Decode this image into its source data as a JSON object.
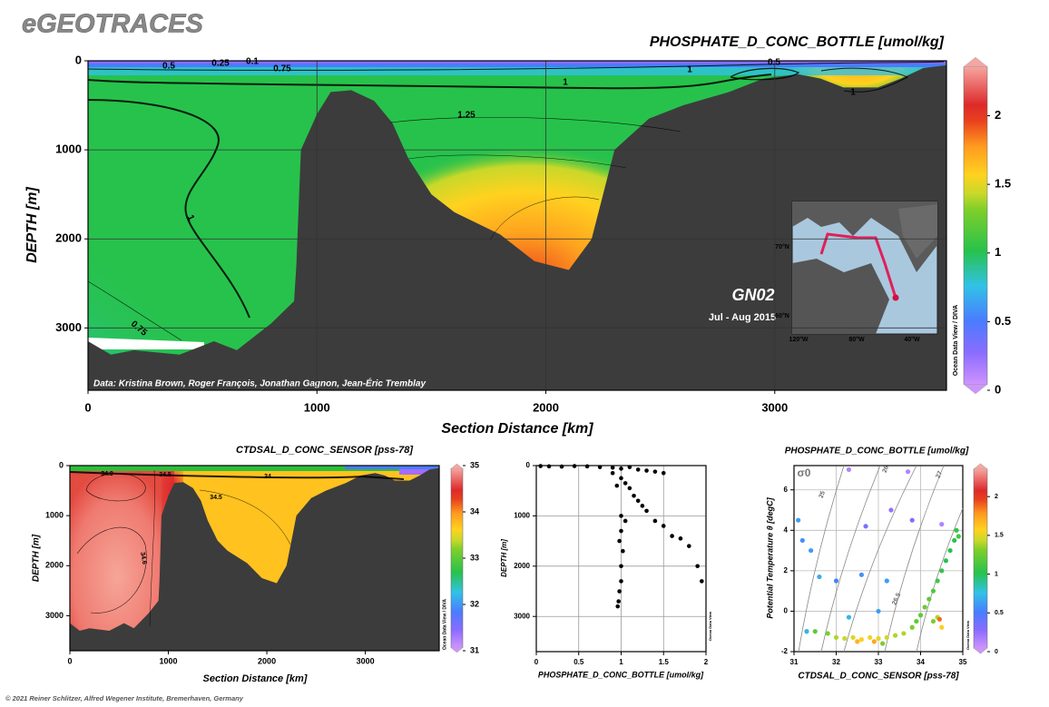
{
  "header": {
    "title": "eGEOTRACES"
  },
  "footer": {
    "credit": "© 2021 Reiner Schlitzer, Alfred Wegener Institute, Bremerhaven, Germany"
  },
  "chart_data": [
    {
      "type": "section",
      "title": "PHOSPHATE_D_CONC_BOTTLE [umol/kg]",
      "xlabel": "Section Distance [km]",
      "ylabel": "DEPTH [m]",
      "xlim": [
        0,
        3750
      ],
      "xticks": [
        0,
        1000,
        2000,
        3000
      ],
      "ylim": [
        3700,
        0
      ],
      "yticks": [
        0,
        1000,
        2000,
        3000
      ],
      "grid": true,
      "clim": [
        0,
        2.4
      ],
      "cticks": [
        0,
        0.5,
        1,
        1.5,
        2
      ],
      "colorbar_label": "Ocean Data View / DIVA",
      "bottom": {
        "x": [
          0,
          100,
          200,
          400,
          550,
          650,
          800,
          900,
          910,
          930,
          1000,
          1060,
          1150,
          1250,
          1330,
          1400,
          1500,
          1600,
          1800,
          1950,
          2100,
          2200,
          2300,
          2450,
          2600,
          2800,
          2950,
          3100,
          3200,
          3300,
          3450,
          3550,
          3650,
          3750
        ],
        "depth": [
          3150,
          3300,
          3250,
          3300,
          3150,
          3250,
          2950,
          2700,
          2300,
          1000,
          600,
          350,
          330,
          450,
          700,
          1100,
          1500,
          1700,
          1950,
          2250,
          2350,
          2000,
          1000,
          650,
          500,
          350,
          200,
          150,
          200,
          300,
          300,
          200,
          80,
          50
        ]
      },
      "contour_labels": [
        0.5,
        0.25,
        0.1,
        0.75,
        1,
        1.25,
        1,
        0.75,
        1,
        0.5,
        1
      ],
      "annotations": [
        "Data: Kristina Brown, Roger François, Jonathan Gagnon, Jean-Éric Tremblay",
        "GN02",
        "Jul - Aug 2015"
      ],
      "map_labels": [
        "70°N",
        "60°N",
        "120°W",
        "80°W",
        "40°W"
      ]
    },
    {
      "type": "section",
      "title": "CTDSAL_D_CONC_SENSOR [pss-78]",
      "xlabel": "Section Distance [km]",
      "ylabel": "DEPTH [m]",
      "xlim": [
        0,
        3750
      ],
      "xticks": [
        0,
        1000,
        2000,
        3000
      ],
      "ylim": [
        3700,
        0
      ],
      "yticks": [
        0,
        1000,
        2000,
        3000
      ],
      "grid": false,
      "clim": [
        31,
        35
      ],
      "cticks": [
        31,
        32,
        33,
        34,
        35
      ],
      "colorbar_label": "Ocean Data View / DIVA",
      "contour_labels": [
        34.9,
        34.5,
        34,
        34.5,
        34.6
      ]
    },
    {
      "type": "scatter",
      "xlabel": "PHOSPHATE_D_CONC_BOTTLE [umol/kg]",
      "ylabel": "DEPTH [m]",
      "xlim": [
        0,
        2
      ],
      "xticks": [
        0,
        0.5,
        1,
        1.5,
        2
      ],
      "ylim": [
        3700,
        0
      ],
      "yticks": [
        0,
        1000,
        2000,
        3000
      ],
      "grid": true,
      "color": "#000000",
      "side_label": "Ocean Data View",
      "x": [
        0.05,
        0.15,
        0.3,
        0.45,
        0.6,
        0.75,
        0.9,
        1.0,
        1.1,
        1.2,
        1.3,
        1.4,
        1.5,
        0.9,
        1.0,
        1.05,
        0.95,
        1.1,
        1.15,
        1.2,
        1.25,
        1.3,
        1.0,
        1.05,
        1.4,
        1.5,
        1.6,
        1.7,
        1.8,
        1.9,
        1.95,
        1.0,
        0.98,
        1.02,
        1.0,
        1.0,
        0.98,
        0.97,
        0.96
      ],
      "y": [
        10,
        15,
        20,
        10,
        15,
        30,
        40,
        60,
        30,
        80,
        100,
        120,
        150,
        150,
        250,
        350,
        400,
        450,
        600,
        700,
        800,
        900,
        1000,
        1100,
        1100,
        1200,
        1400,
        1450,
        1600,
        2000,
        2300,
        1300,
        1500,
        1700,
        2000,
        2300,
        2500,
        2700,
        2800
      ]
    },
    {
      "type": "scatter",
      "title": "PHOSPHATE_D_CONC_BOTTLE [umol/kg]",
      "xlabel": "CTDSAL_D_CONC_SENSOR [pss-78]",
      "ylabel": "Potential Temperature θ [degC]",
      "xlim": [
        31,
        35
      ],
      "xticks": [
        31,
        32,
        33,
        34,
        35
      ],
      "ylim": [
        -2,
        7.2
      ],
      "yticks": [
        -2,
        0,
        2,
        4,
        6
      ],
      "grid": true,
      "clim": [
        0,
        2.4
      ],
      "cticks": [
        0,
        0.5,
        1,
        1.5,
        2
      ],
      "colorbar_label": "Ocean Data View",
      "density_label": "σ0",
      "contour_labels": [
        25,
        26,
        26.5,
        27
      ],
      "x": [
        32.0,
        32.2,
        32.4,
        32.6,
        32.8,
        33.0,
        33.2,
        33.4,
        31.8,
        31.5,
        31.3,
        32.5,
        32.9,
        33.1,
        33.6,
        33.8,
        33.9,
        34.0,
        34.1,
        34.2,
        34.3,
        34.4,
        34.5,
        34.6,
        34.7,
        34.8,
        34.85,
        34.9,
        34.4,
        34.5,
        34.45,
        34.3,
        31.1,
        31.2,
        31.4,
        31.6,
        32.0,
        32.3,
        32.6,
        33.0,
        33.2,
        31.3,
        32.7,
        33.3,
        33.8,
        34.5,
        33.7,
        32.3
      ],
      "y": [
        -1.3,
        -1.35,
        -1.3,
        -1.4,
        -1.3,
        -1.35,
        -1.3,
        -1.2,
        -1.1,
        -1.0,
        -1.0,
        -1.5,
        -1.5,
        -1.6,
        -1.1,
        -0.8,
        -0.5,
        -0.2,
        0.2,
        0.6,
        1.0,
        1.5,
        2.0,
        2.5,
        3.0,
        3.5,
        4.0,
        3.7,
        -0.3,
        -0.8,
        -0.4,
        -0.5,
        4.5,
        3.5,
        3.0,
        1.7,
        1.5,
        -0.3,
        1.8,
        0.0,
        1.5,
        -1.0,
        4.2,
        5.0,
        4.5,
        4.3,
        6.9,
        7.0
      ],
      "c": [
        1.4,
        1.45,
        1.5,
        1.6,
        1.55,
        1.5,
        1.45,
        1.4,
        1.3,
        1.2,
        1.1,
        1.7,
        1.75,
        1.3,
        1.4,
        1.3,
        1.2,
        1.2,
        1.25,
        1.2,
        1.15,
        1.1,
        1.05,
        1.0,
        1.0,
        1.0,
        1.05,
        1.1,
        1.4,
        1.6,
        1.9,
        1.3,
        0.6,
        0.55,
        0.6,
        0.65,
        0.5,
        0.7,
        0.55,
        0.6,
        0.6,
        0.7,
        0.3,
        0.2,
        0.3,
        0.1,
        0.1,
        0.1
      ]
    }
  ]
}
